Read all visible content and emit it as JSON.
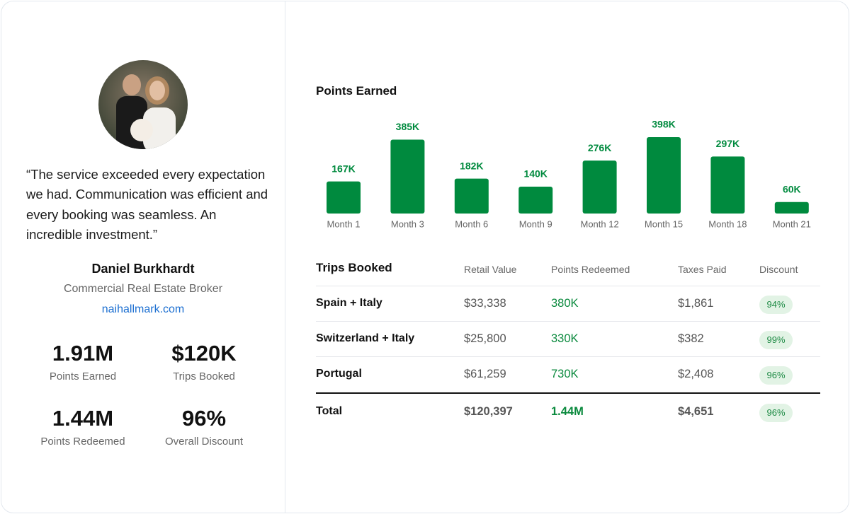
{
  "testimonial": {
    "quote": "“The service exceeded every expectation we had. Communication was efficient and every booking was seamless. An incredible investment.”",
    "name": "Daniel Burkhardt",
    "role": "Commercial Real Estate Broker",
    "website": "naihallmark.com"
  },
  "stats": [
    {
      "value": "1.91M",
      "label": "Points Earned"
    },
    {
      "value": "$120K",
      "label": "Trips Booked"
    },
    {
      "value": "1.44M",
      "label": "Points Redeemed"
    },
    {
      "value": "96%",
      "label": "Overall Discount"
    }
  ],
  "chart_data": {
    "type": "bar",
    "title": "Points Earned",
    "categories": [
      "Month 1",
      "Month 3",
      "Month 6",
      "Month 9",
      "Month 12",
      "Month 15",
      "Month 18",
      "Month 21"
    ],
    "values": [
      167,
      385,
      182,
      140,
      276,
      398,
      297,
      60
    ],
    "value_labels": [
      "167K",
      "385K",
      "182K",
      "140K",
      "276K",
      "398K",
      "297K",
      "60K"
    ],
    "color": "#008a3e"
  },
  "table": {
    "title": "Trips Booked",
    "columns": [
      "Retail Value",
      "Points Redeemed",
      "Taxes Paid",
      "Discount"
    ],
    "rows": [
      [
        "Spain + Italy",
        "$33,338",
        "380K",
        "$1,861",
        "94%"
      ],
      [
        "Switzerland + Italy",
        "$25,800",
        "330K",
        "$382",
        "99%"
      ],
      [
        "Portugal",
        "$61,259",
        "730K",
        "$2,408",
        "96%"
      ]
    ],
    "total": [
      "Total",
      "$120,397",
      "1.44M",
      "$4,651",
      "96%"
    ]
  }
}
